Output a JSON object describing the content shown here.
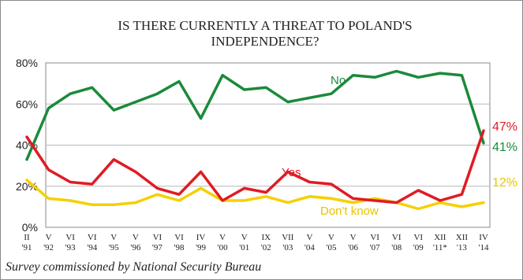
{
  "chart_data": {
    "type": "line",
    "title_lines": [
      "IS THERE CURRENTLY A THREAT TO POLAND'S",
      "INDEPENDENCE?"
    ],
    "categories": [
      [
        "II",
        "'91"
      ],
      [
        "V",
        "'92"
      ],
      [
        "VI",
        "'93"
      ],
      [
        "VI",
        "'94"
      ],
      [
        "V",
        "'95"
      ],
      [
        "V",
        "'96"
      ],
      [
        "VI",
        "'97"
      ],
      [
        "VI",
        "'98"
      ],
      [
        "IV",
        "'99"
      ],
      [
        "V",
        "'00"
      ],
      [
        "V",
        "'01"
      ],
      [
        "IX",
        "'02"
      ],
      [
        "VII",
        "'03"
      ],
      [
        "V",
        "'04"
      ],
      [
        "V",
        "'05"
      ],
      [
        "V",
        "'06"
      ],
      [
        "VI",
        "'07"
      ],
      [
        "VI",
        "'08"
      ],
      [
        "VI",
        "'09"
      ],
      [
        "XII",
        "'11*"
      ],
      [
        "XII",
        "'13"
      ],
      [
        "IV",
        "'14"
      ]
    ],
    "ylim": [
      0,
      80
    ],
    "yticks": [
      0,
      20,
      40,
      60,
      80
    ],
    "ytick_labels": [
      "0%",
      "20%",
      "40%",
      "60%",
      "80%"
    ],
    "grid": true,
    "series": [
      {
        "name": "No",
        "color": "#1a8a3a",
        "values": [
          33,
          58,
          65,
          68,
          57,
          61,
          65,
          71,
          53,
          74,
          67,
          68,
          61,
          63,
          65,
          74,
          73,
          76,
          73,
          75,
          74,
          41
        ],
        "end_label": "41%"
      },
      {
        "name": "Yes",
        "color": "#e01b24",
        "values": [
          44,
          28,
          22,
          21,
          33,
          27,
          19,
          16,
          27,
          13,
          19,
          17,
          27,
          22,
          21,
          14,
          13,
          12,
          18,
          13,
          16,
          47
        ],
        "end_label": "47%"
      },
      {
        "name": "Don't know",
        "color": "#f5d000",
        "values": [
          23,
          14,
          13,
          11,
          11,
          12,
          16,
          13,
          19,
          13,
          13,
          15,
          12,
          15,
          14,
          12,
          14,
          12,
          9,
          12,
          10,
          12
        ],
        "end_label": "12%"
      }
    ],
    "source": "Survey commissioned by National Security Bureau"
  }
}
